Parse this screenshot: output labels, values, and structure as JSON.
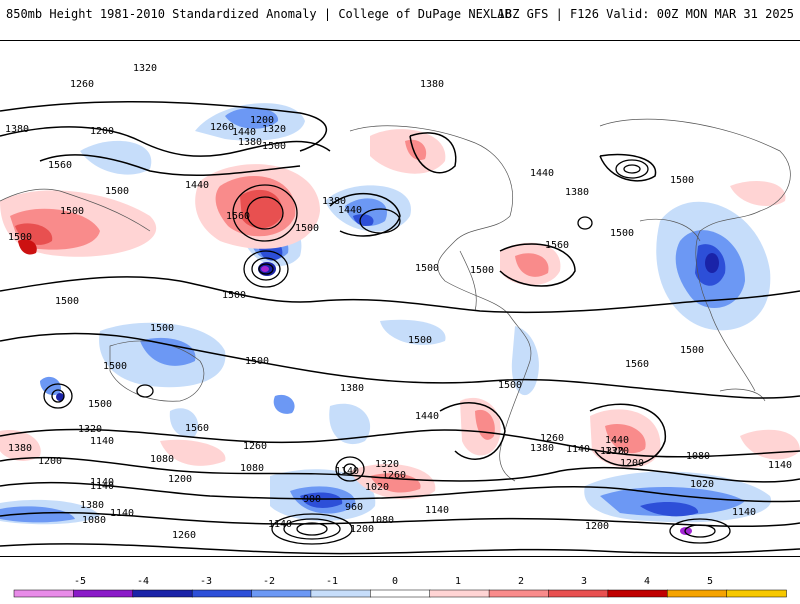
{
  "header": {
    "left_title": "850mb Height 1981-2010 Standardized Anomaly | College of DuPage NEXLAB",
    "right_title": "18Z GFS | F126 Valid: 00Z MON MAR 31 2025"
  },
  "map": {
    "contour_labels": [
      "1320",
      "1260",
      "1380",
      "1200",
      "1440",
      "1380",
      "1200",
      "1260",
      "1320",
      "1500",
      "1380",
      "1500",
      "1560",
      "1500",
      "1440",
      "1560",
      "1500",
      "1380",
      "1440",
      "1500",
      "1440",
      "1380",
      "1560",
      "1500",
      "1500",
      "1500",
      "1500",
      "1500",
      "1500",
      "1500",
      "1500",
      "1560",
      "1500",
      "1500",
      "1500",
      "1500",
      "1380",
      "1440",
      "1500",
      "1560",
      "1320",
      "1380",
      "1140",
      "1200",
      "1260",
      "1080",
      "1140",
      "1080",
      "1200",
      "1140",
      "1260",
      "1320",
      "1380",
      "1140",
      "1080",
      "1140",
      "900",
      "960",
      "1020",
      "1140",
      "1200",
      "1080",
      "1140",
      "1200",
      "1260",
      "1380",
      "1320",
      "1260",
      "1140",
      "1200",
      "1080",
      "1020",
      "1140",
      "1320",
      "1440",
      "1140"
    ],
    "anomaly_colors": {
      "pos1": "#ffd4d4",
      "pos2": "#f98b8b",
      "pos3": "#e85050",
      "pos4": "#cc1111",
      "neg1": "#c6ddfa",
      "neg2": "#6c98f4",
      "neg3": "#2d4fd8",
      "neg4": "#1a23a8",
      "neg5": "#a226d4",
      "contour": "#000000"
    }
  },
  "colorbar": {
    "labels": [
      "-5",
      "-4",
      "-3",
      "-2",
      "-1",
      "0",
      "1",
      "2",
      "3",
      "4",
      "5"
    ],
    "colors": [
      "#e88be8",
      "#8a1ac8",
      "#1a23a8",
      "#2d4fd8",
      "#6c98f4",
      "#c6ddfa",
      "#ffffff",
      "#ffd4d4",
      "#f98b8b",
      "#e85050",
      "#c00000",
      "#f5a300",
      "#f7c800"
    ]
  }
}
